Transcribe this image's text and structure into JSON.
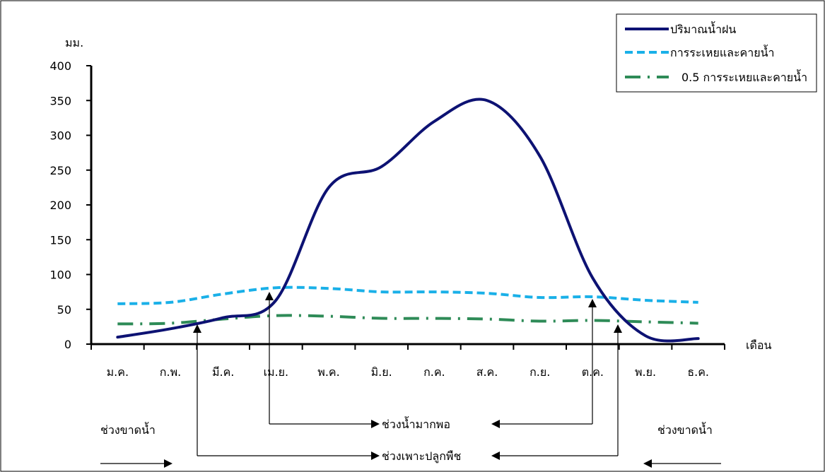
{
  "chart_data": {
    "type": "line",
    "ylabel": "มม.",
    "xlabel": "เดือน",
    "ylim": [
      0,
      400
    ],
    "yticks": [
      "0",
      "50",
      "100",
      "150",
      "200",
      "250",
      "300",
      "350",
      "400"
    ],
    "categories": [
      "ม.ค.",
      "ก.พ.",
      "มี.ค.",
      "เม.ย.",
      "พ.ค.",
      "มิ.ย.",
      "ก.ค.",
      "ส.ค.",
      "ก.ย.",
      "ต.ค.",
      "พ.ย.",
      "ธ.ค."
    ],
    "series": [
      {
        "name": "ปริมาณน้ำฝน",
        "color": "#0d1273",
        "style": "solid",
        "values": [
          10,
          22,
          38,
          63,
          225,
          255,
          320,
          350,
          270,
          95,
          12,
          8
        ]
      },
      {
        "name": "การระเหยและคายน้ำ",
        "color": "#1ab0e8",
        "style": "dashed",
        "values": [
          58,
          60,
          72,
          81,
          80,
          75,
          75,
          73,
          67,
          68,
          63,
          60
        ]
      },
      {
        "name": "0.5 การระเหยและคายน้ำ",
        "color": "#2e8b57",
        "style": "dash-dot",
        "values": [
          29,
          30,
          36,
          41,
          40,
          37,
          37,
          36,
          33,
          34,
          32,
          30
        ]
      }
    ],
    "legend_position": "top-right",
    "grid": false,
    "annotations": {
      "deficit_left": "ช่วงขาดน้ำ",
      "deficit_right": "ช่วงขาดน้ำ",
      "surplus": "ช่วงน้ำมากพอ",
      "growing": "ช่วงเพาะปลูกพืช"
    }
  }
}
